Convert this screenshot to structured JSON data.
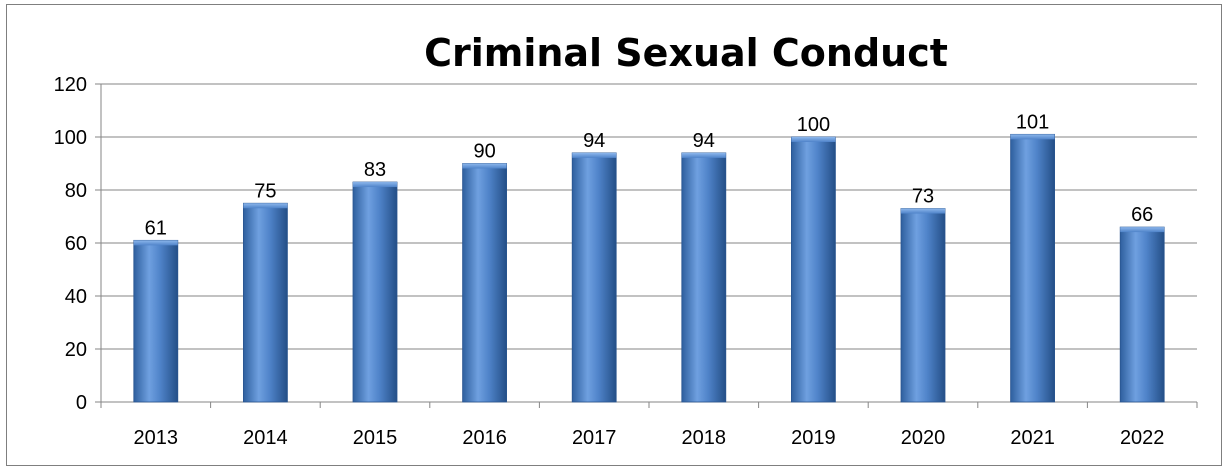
{
  "chart_data": {
    "type": "bar",
    "title": "Criminal Sexual Conduct",
    "xlabel": "",
    "ylabel": "",
    "categories": [
      "2013",
      "2014",
      "2015",
      "2016",
      "2017",
      "2018",
      "2019",
      "2020",
      "2021",
      "2022"
    ],
    "values": [
      61,
      75,
      83,
      90,
      94,
      94,
      100,
      73,
      101,
      66
    ],
    "data_labels": [
      "61",
      "75",
      "83",
      "90",
      "94",
      "94",
      "100",
      "73",
      "101",
      "66"
    ],
    "ylim": [
      0,
      120
    ],
    "yticks": [
      "0",
      "20",
      "40",
      "60",
      "80",
      "100",
      "120"
    ],
    "grid": true,
    "legend": "none",
    "bar_color": "#4a7ebb"
  }
}
